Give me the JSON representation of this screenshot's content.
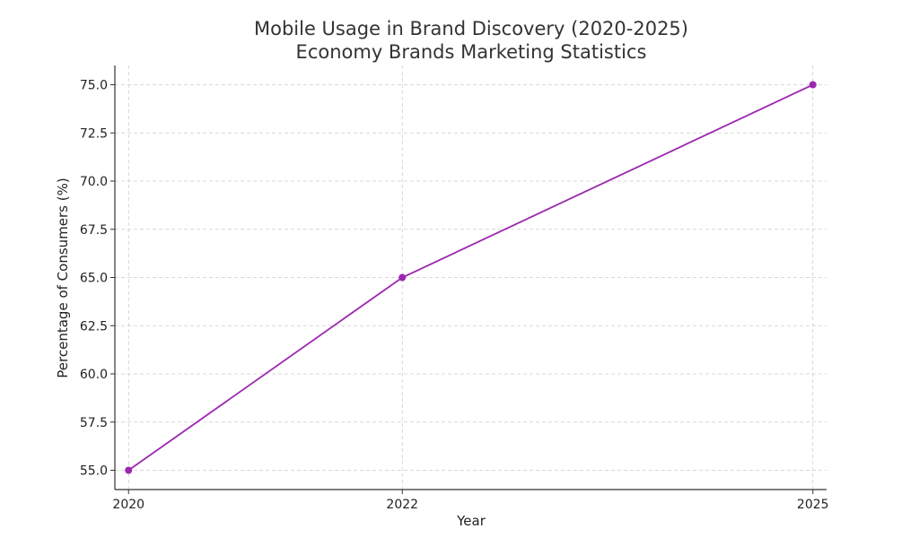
{
  "chart_data": {
    "type": "line",
    "title": "Mobile Usage in Brand Discovery (2020-2025)",
    "subtitle": "Economy Brands Marketing Statistics",
    "xlabel": "Year",
    "ylabel": "Percentage of Consumers (%)",
    "x": [
      2020,
      2022,
      2025
    ],
    "x_tick_labels": [
      "2020",
      "2022",
      "2025"
    ],
    "series": [
      {
        "values": [
          55,
          65,
          75
        ],
        "color": "#9c27b0"
      }
    ],
    "ylim": [
      54,
      76
    ],
    "y_ticks": [
      55.0,
      57.5,
      60.0,
      62.5,
      65.0,
      67.5,
      70.0,
      72.5,
      75.0
    ],
    "y_tick_labels": [
      "55.0",
      "57.5",
      "60.0",
      "62.5",
      "65.0",
      "67.5",
      "70.0",
      "72.5",
      "75.0"
    ],
    "grid": true,
    "legend": "none"
  }
}
